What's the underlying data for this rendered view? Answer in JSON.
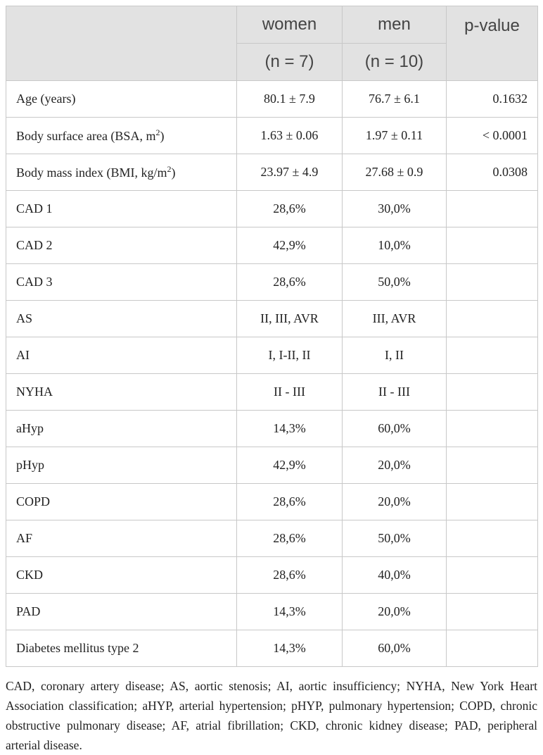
{
  "header": [
    {
      "label": "women",
      "n": "(n = 7)"
    },
    {
      "label": "men",
      "n": "(n = 10)"
    },
    {
      "label": "p-value"
    }
  ],
  "table": {
    "rows": [
      [
        "Age (years)",
        "80.1 ± 7.9",
        "76.7 ± 6.1",
        "0.1632"
      ],
      [
        {
          "before": "Body surface area (BSA, m",
          "sup": "2",
          "after": ")"
        },
        "1.63 ± 0.06",
        "1.97 ± 0.11",
        "< 0.0001"
      ],
      [
        {
          "before": "Body mass index (BMI, kg/m",
          "sup": "2",
          "after": ")"
        },
        "23.97 ± 4.9",
        "27.68 ± 0.9",
        "0.0308"
      ],
      [
        "CAD 1",
        "28,6%",
        "30,0%"
      ],
      [
        "CAD 2",
        "42,9%",
        "10,0%"
      ],
      [
        "CAD 3",
        "28,6%",
        "50,0%"
      ],
      [
        "AS",
        "II, III, AVR",
        "III, AVR"
      ],
      [
        "AI",
        "I, I-II, II",
        "I, II"
      ],
      [
        "NYHA",
        "II - III",
        "II - III"
      ],
      [
        "aHyp",
        "14,3%",
        "60,0%"
      ],
      [
        "pHyp",
        "42,9%",
        "20,0%"
      ],
      [
        "COPD",
        "28,6%",
        "20,0%"
      ],
      [
        "AF",
        "28,6%",
        "50,0%"
      ],
      [
        "CKD",
        "28,6%",
        "40,0%"
      ],
      [
        "PAD",
        "14,3%",
        "20,0%"
      ],
      [
        "Diabetes mellitus type 2",
        "14,3%",
        "60,0%"
      ]
    ]
  },
  "footnote": "CAD, coronary artery disease; AS, aortic stenosis; AI, aortic insufficiency; NYHA, New York Heart Association classification; aHYP, arterial hypertension; pHYP, pulmonary hypertension; COPD, chronic obstructive pulmonary disease; AF, atrial fibrillation; CKD, chronic kidney disease; PAD, peripheral arterial disease."
}
